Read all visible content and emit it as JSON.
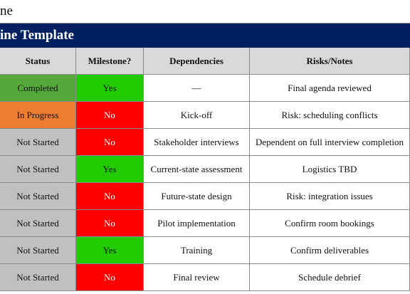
{
  "sheet_title": "ne",
  "banner_title": "ine Template",
  "headers": {
    "status": "Status",
    "milestone": "Milestone?",
    "dependencies": "Dependencies",
    "risks": "Risks/Notes"
  },
  "rows": [
    {
      "status": "Completed",
      "status_kind": "completed",
      "milestone": "Yes",
      "dependencies": "—",
      "risks": "Final agenda reviewed"
    },
    {
      "status": "In Progress",
      "status_kind": "progress",
      "milestone": "No",
      "dependencies": "Kick-off",
      "risks": "Risk: scheduling conflicts"
    },
    {
      "status": "Not Started",
      "status_kind": "notstarted",
      "milestone": "No",
      "dependencies": "Stakeholder interviews",
      "risks": "Dependent on full interview completion"
    },
    {
      "status": "Not Started",
      "status_kind": "notstarted",
      "milestone": "Yes",
      "dependencies": "Current-state assessment",
      "risks": "Logistics TBD"
    },
    {
      "status": "Not Started",
      "status_kind": "notstarted",
      "milestone": "No",
      "dependencies": "Future-state design",
      "risks": "Risk: integration issues"
    },
    {
      "status": "Not Started",
      "status_kind": "notstarted",
      "milestone": "No",
      "dependencies": "Pilot implementation",
      "risks": "Confirm room bookings"
    },
    {
      "status": "Not Started",
      "status_kind": "notstarted",
      "milestone": "Yes",
      "dependencies": "Training",
      "risks": "Confirm deliverables"
    },
    {
      "status": "Not Started",
      "status_kind": "notstarted",
      "milestone": "No",
      "dependencies": "Final review",
      "risks": "Schedule debrief"
    }
  ],
  "colors": {
    "banner": "#002060",
    "header": "#d9d9d9",
    "completed": "#55a83a",
    "in_progress": "#ed7d31",
    "not_started": "#c0c0c0",
    "milestone_yes": "#22cc00",
    "milestone_no": "#ff0000"
  }
}
